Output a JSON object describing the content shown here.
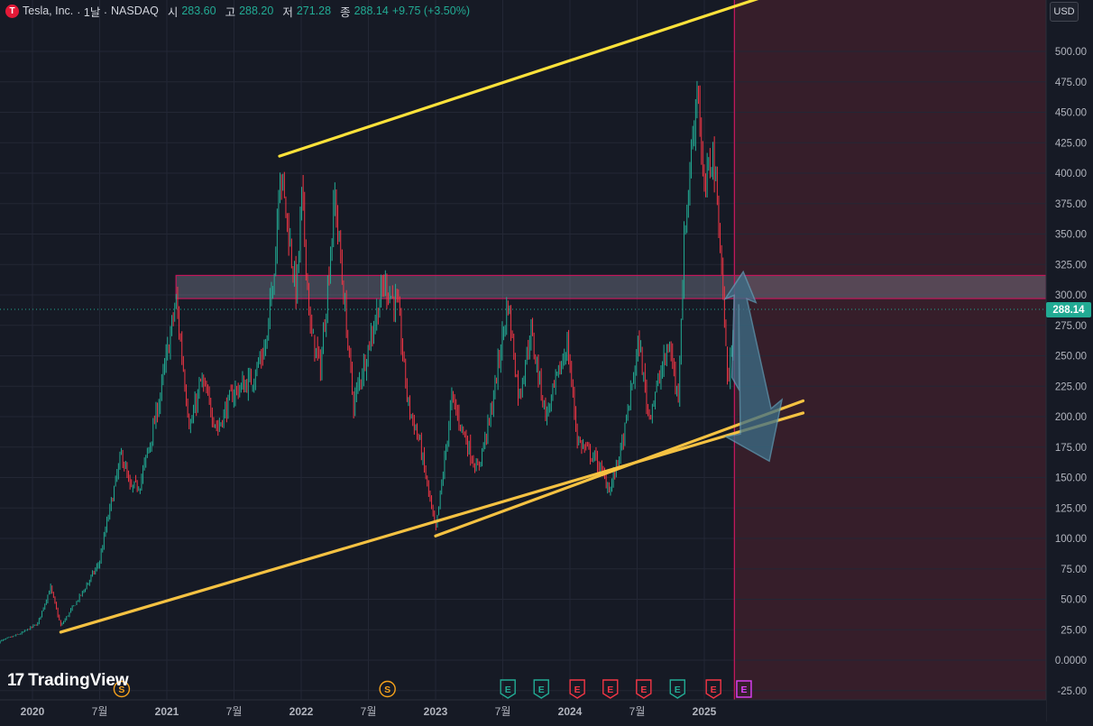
{
  "header": {
    "symbol_name": "Tesla, Inc.",
    "interval": "· 1날 ·",
    "exchange": "NASDAQ",
    "logo_letter": "T",
    "open_label": "시",
    "open_value": "283.60",
    "high_label": "고",
    "high_value": "288.20",
    "low_label": "저",
    "low_value": "271.28",
    "close_label": "종",
    "close_value": "288.14",
    "change": "+9.75 (+3.50%)"
  },
  "currency_button": "USD",
  "current_price_label": "288.14",
  "watermark": "TradingView",
  "colors": {
    "background": "#161a25",
    "up": "#22ab94",
    "down": "#f23645",
    "trendline": "#fde23a",
    "trendline_orange": "#f5c242",
    "zone": "#c2185b",
    "arrow": "#5f9eb8",
    "future_area": "#3a1f2b"
  },
  "chart_data": {
    "type": "candlestick",
    "y_axis": {
      "ticks": [
        "500.00",
        "475.00",
        "450.00",
        "425.00",
        "400.00",
        "375.00",
        "350.00",
        "325.00",
        "300.00",
        "275.00",
        "250.00",
        "225.00",
        "200.00",
        "175.00",
        "150.00",
        "125.00",
        "100.00",
        "75.00",
        "50.00",
        "25.00",
        "0.0000",
        "-25.00"
      ],
      "range": [
        -25,
        545
      ]
    },
    "x_axis": {
      "labels": [
        "2020",
        "7월",
        "2021",
        "7월",
        "2022",
        "7월",
        "2023",
        "7월",
        "2024",
        "7월",
        "2025"
      ]
    },
    "price_path": [
      [
        "2019-10-01",
        15
      ],
      [
        "2019-12-01",
        22
      ],
      [
        "2020-01-15",
        30
      ],
      [
        "2020-02-19",
        60
      ],
      [
        "2020-03-18",
        28
      ],
      [
        "2020-05-15",
        55
      ],
      [
        "2020-07-01",
        80
      ],
      [
        "2020-07-20",
        110
      ],
      [
        "2020-08-31",
        170
      ],
      [
        "2020-09-23",
        140
      ],
      [
        "2020-10-20",
        145
      ],
      [
        "2020-11-25",
        190
      ],
      [
        "2020-12-15",
        220
      ],
      [
        "2021-01-26",
        295
      ],
      [
        "2021-03-05",
        190
      ],
      [
        "2021-04-05",
        230
      ],
      [
        "2021-05-19",
        190
      ],
      [
        "2021-07-01",
        220
      ],
      [
        "2021-08-20",
        230
      ],
      [
        "2021-09-30",
        260
      ],
      [
        "2021-10-25",
        340
      ],
      [
        "2021-11-04",
        409
      ],
      [
        "2021-12-20",
        300
      ],
      [
        "2022-01-04",
        383
      ],
      [
        "2022-01-27",
        270
      ],
      [
        "2022-02-24",
        240
      ],
      [
        "2022-04-04",
        380
      ],
      [
        "2022-05-24",
        210
      ],
      [
        "2022-06-15",
        235
      ],
      [
        "2022-08-16",
        310
      ],
      [
        "2022-09-22",
        290
      ],
      [
        "2022-10-20",
        210
      ],
      [
        "2022-11-20",
        180
      ],
      [
        "2023-01-03",
        105
      ],
      [
        "2023-01-26",
        160
      ],
      [
        "2023-02-16",
        215
      ],
      [
        "2023-04-26",
        155
      ],
      [
        "2023-06-01",
        200
      ],
      [
        "2023-07-19",
        295
      ],
      [
        "2023-08-18",
        215
      ],
      [
        "2023-09-19",
        270
      ],
      [
        "2023-10-31",
        200
      ],
      [
        "2023-12-28",
        260
      ],
      [
        "2024-01-25",
        180
      ],
      [
        "2024-03-14",
        165
      ],
      [
        "2024-04-22",
        140
      ],
      [
        "2024-05-28",
        180
      ],
      [
        "2024-07-10",
        262
      ],
      [
        "2024-08-05",
        200
      ],
      [
        "2024-10-01",
        260
      ],
      [
        "2024-10-24",
        215
      ],
      [
        "2024-11-11",
        350
      ],
      [
        "2024-12-17",
        479
      ],
      [
        "2025-01-02",
        380
      ],
      [
        "2025-01-27",
        420
      ],
      [
        "2025-02-14",
        355
      ],
      [
        "2025-03-10",
        222
      ],
      [
        "2025-03-27",
        288
      ]
    ],
    "trendlines": [
      {
        "name": "upper",
        "from": [
          "2021-11-04",
          414
        ],
        "to": [
          "2025-09-25",
          555
        ]
      },
      {
        "name": "lower_outer",
        "from": [
          "2020-03-18",
          23
        ],
        "to": [
          "2025-09-30",
          203
        ]
      },
      {
        "name": "lower_inner",
        "from": [
          "2023-01-03",
          102
        ],
        "to": [
          "2025-09-30",
          213
        ]
      }
    ],
    "resistance_zone": {
      "from_date": "2021-01-26",
      "low": 297,
      "high": 316
    },
    "current_time": "2025-03-27",
    "last_price": 288.14,
    "projection_arrow": [
      [
        "2025-03-30",
        225
      ],
      [
        "2025-04-20",
        316
      ],
      [
        "2025-06-25",
        165
      ]
    ],
    "event_markers": [
      {
        "date": "2022-08-25",
        "letter": "S",
        "kind": "split"
      },
      {
        "date": "2020-08-31",
        "letter": "S",
        "kind": "split"
      },
      {
        "date": "2023-07-19",
        "letter": "E",
        "kind": "earnings_beat"
      },
      {
        "date": "2023-10-18",
        "letter": "E",
        "kind": "earnings_beat"
      },
      {
        "date": "2024-01-24",
        "letter": "E",
        "kind": "earnings_miss"
      },
      {
        "date": "2024-04-23",
        "letter": "E",
        "kind": "earnings_miss"
      },
      {
        "date": "2024-07-23",
        "letter": "E",
        "kind": "earnings_miss"
      },
      {
        "date": "2024-10-23",
        "letter": "E",
        "kind": "earnings_beat"
      },
      {
        "date": "2025-01-29",
        "letter": "E",
        "kind": "earnings_miss"
      },
      {
        "date": "2025-04-22",
        "letter": "E",
        "kind": "earnings_upcoming"
      }
    ]
  }
}
